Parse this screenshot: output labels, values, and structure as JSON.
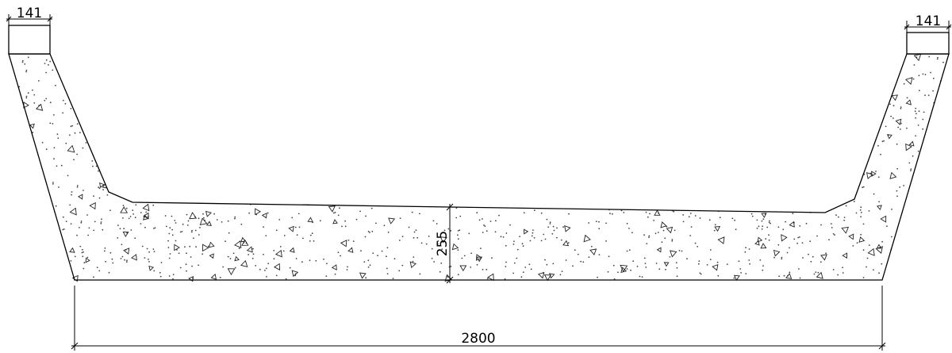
{
  "drawing": {
    "type": "cross-section",
    "material_pattern": "concrete",
    "dimensions": {
      "top_left_width": "141",
      "top_right_width": "141",
      "slab_thickness": "255",
      "overall_width": "2800"
    }
  },
  "colors": {
    "line": "#000000",
    "background": "#ffffff"
  }
}
